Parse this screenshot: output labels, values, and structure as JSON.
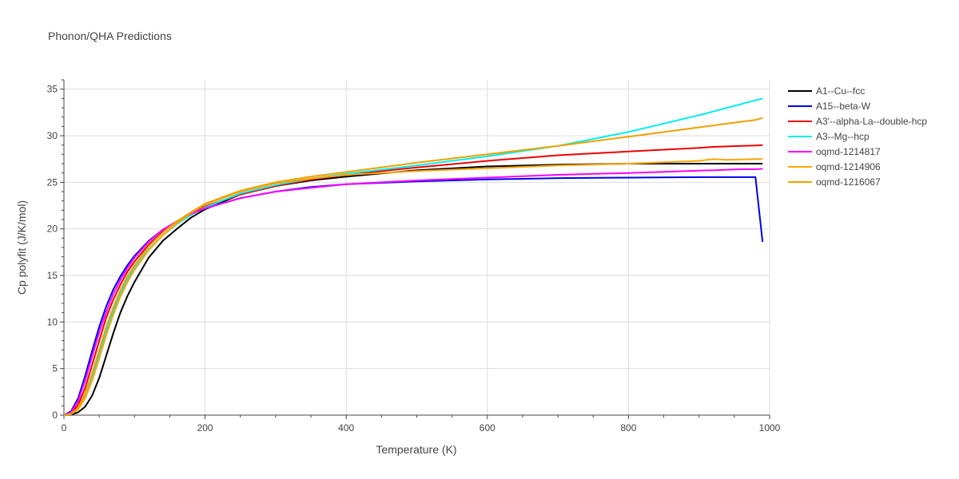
{
  "chart_data": {
    "type": "line",
    "title": "Phonon/QHA Predictions",
    "xlabel": "Temperature (K)",
    "ylabel": "Cp polyfit (J/K/mol)",
    "xlim": [
      0,
      1000
    ],
    "ylim": [
      0,
      36
    ],
    "xticks": [
      0,
      200,
      400,
      600,
      800,
      1000
    ],
    "yticks": [
      0,
      5,
      10,
      15,
      20,
      25,
      30,
      35
    ],
    "grid": true,
    "legend_position": "right",
    "x": [
      0,
      10,
      20,
      30,
      40,
      50,
      60,
      70,
      80,
      90,
      100,
      120,
      140,
      160,
      180,
      200,
      250,
      300,
      350,
      400,
      500,
      600,
      700,
      800,
      900,
      920,
      940,
      960,
      980,
      990
    ],
    "series": [
      {
        "name": "A1--Cu--fcc",
        "color": "#000000",
        "values": [
          0,
          0.05,
          0.3,
          0.9,
          2.1,
          4.0,
          6.4,
          8.8,
          11.0,
          12.8,
          14.3,
          16.9,
          18.7,
          20.0,
          21.2,
          22.1,
          23.7,
          24.6,
          25.2,
          25.6,
          26.3,
          26.7,
          26.9,
          27.0,
          27.0,
          27.0,
          27.0,
          27.0,
          27.0,
          27.0
        ]
      },
      {
        "name": "A15--beta-W",
        "color": "#0000ee",
        "values": [
          0,
          0.4,
          1.8,
          4.2,
          6.9,
          9.5,
          11.7,
          13.5,
          14.9,
          16.1,
          17.1,
          18.7,
          19.9,
          20.8,
          21.6,
          22.2,
          23.3,
          24.0,
          24.5,
          24.8,
          25.1,
          25.3,
          25.45,
          25.5,
          25.55,
          25.55,
          25.55,
          25.55,
          25.55,
          18.6
        ]
      },
      {
        "name": "A3'--alpha-La--double-hcp",
        "color": "#ee0000",
        "values": [
          0,
          0.2,
          1.1,
          2.9,
          5.4,
          8.0,
          10.5,
          12.4,
          14.0,
          15.4,
          16.5,
          18.3,
          19.7,
          20.8,
          21.7,
          22.4,
          23.7,
          24.6,
          25.3,
          25.8,
          26.6,
          27.3,
          27.9,
          28.3,
          28.7,
          28.8,
          28.85,
          28.9,
          28.95,
          29.0
        ]
      },
      {
        "name": "A3--Mg--hcp",
        "color": "#00eeee",
        "values": [
          0,
          0.1,
          0.7,
          2.0,
          4.0,
          6.5,
          9.0,
          11.2,
          13.0,
          14.6,
          15.8,
          17.8,
          19.3,
          20.5,
          21.5,
          22.3,
          23.8,
          24.7,
          25.4,
          25.9,
          26.8,
          27.8,
          28.9,
          30.4,
          32.2,
          32.6,
          33.0,
          33.4,
          33.8,
          34.0
        ]
      },
      {
        "name": "oqmd-1214817",
        "color": "#ff00ff",
        "values": [
          0,
          0.3,
          1.5,
          3.7,
          6.3,
          8.9,
          11.1,
          13.0,
          14.5,
          15.8,
          16.9,
          18.6,
          19.9,
          20.8,
          21.6,
          22.2,
          23.3,
          24.0,
          24.4,
          24.8,
          25.2,
          25.5,
          25.8,
          26.0,
          26.25,
          26.3,
          26.35,
          26.4,
          26.4,
          26.45
        ]
      },
      {
        "name": "oqmd-1214906",
        "color": "#ffa500",
        "values": [
          0,
          0.1,
          0.6,
          1.8,
          3.7,
          6.1,
          8.6,
          10.8,
          12.7,
          14.3,
          15.6,
          17.7,
          19.3,
          20.6,
          21.7,
          22.6,
          24.0,
          24.9,
          25.4,
          25.8,
          26.2,
          26.5,
          26.8,
          27.0,
          27.3,
          27.5,
          27.4,
          27.45,
          27.5,
          27.5
        ]
      },
      {
        "name": "oqmd-1216067",
        "color": "#f0a000",
        "values": [
          0,
          0.15,
          0.8,
          2.3,
          4.5,
          7.0,
          9.5,
          11.6,
          13.4,
          14.9,
          16.1,
          18.1,
          19.6,
          20.8,
          21.8,
          22.7,
          24.1,
          25.0,
          25.6,
          26.1,
          27.1,
          28.0,
          28.9,
          29.9,
          30.9,
          31.1,
          31.3,
          31.5,
          31.7,
          31.9
        ]
      }
    ]
  }
}
